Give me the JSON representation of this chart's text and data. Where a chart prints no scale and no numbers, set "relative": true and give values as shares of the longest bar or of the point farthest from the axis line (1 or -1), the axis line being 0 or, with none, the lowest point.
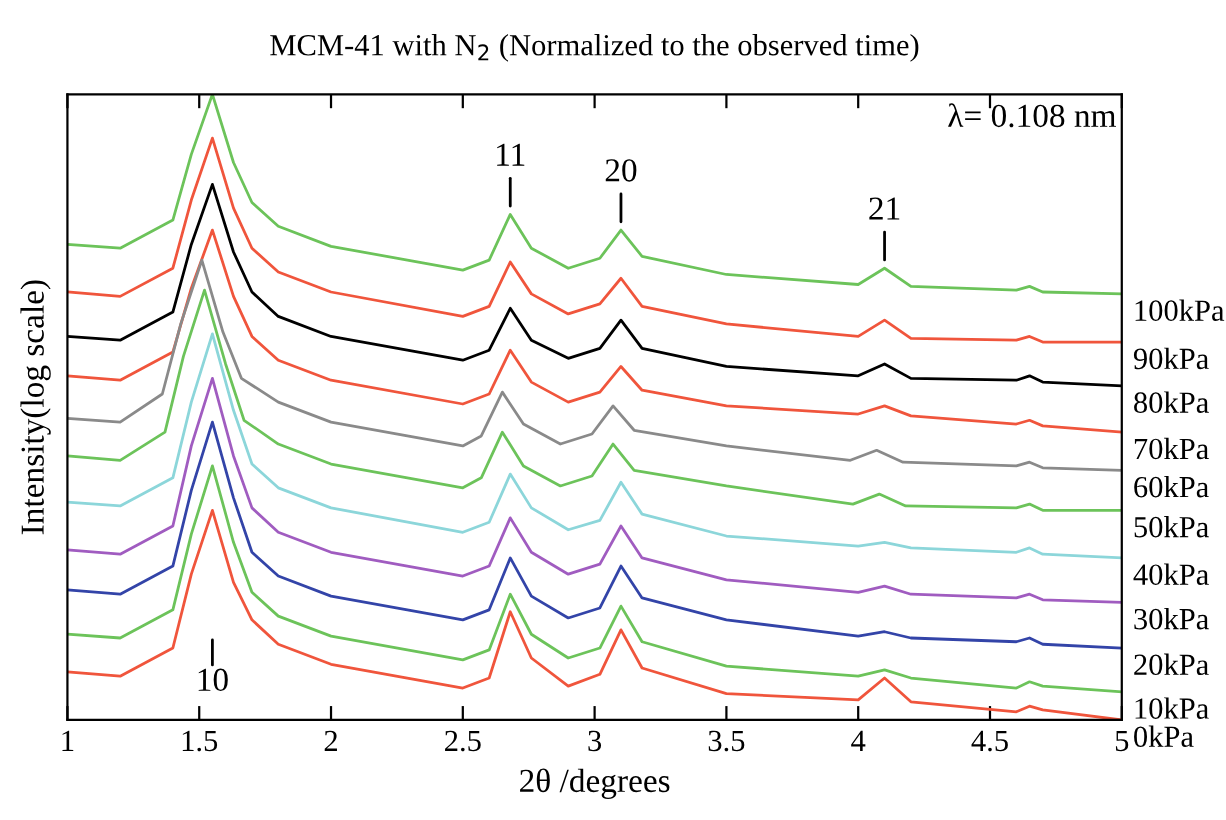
{
  "chart_data": {
    "type": "line",
    "relative": true,
    "title": "MCM-41 with N$_{2}$ (Normalized to the observed time)",
    "xlabel": "2θ /degrees",
    "ylabel": "Intensity(log scale)",
    "x": [
      1.0,
      1.2,
      1.4,
      1.47,
      1.55,
      1.63,
      1.7,
      1.8,
      2.0,
      2.5,
      2.6,
      2.68,
      2.76,
      2.9,
      3.02,
      3.1,
      3.18,
      3.5,
      4.0,
      4.1,
      4.2,
      4.6,
      4.65,
      4.7,
      5.0
    ],
    "xlim": [
      1,
      5
    ],
    "xticks": [
      1,
      1.5,
      2,
      2.5,
      3,
      3.5,
      4,
      4.5,
      5
    ],
    "grid": false,
    "legend": false,
    "marker": "none",
    "line_style": "solid",
    "series": [
      {
        "name": "100kPa",
        "color": "#6cc35a",
        "values": [
          0.76,
          0.754,
          0.799,
          0.904,
          1.0,
          0.891,
          0.827,
          0.789,
          0.757,
          0.719,
          0.735,
          0.808,
          0.754,
          0.722,
          0.738,
          0.783,
          0.741,
          0.712,
          0.696,
          0.722,
          0.693,
          0.687,
          0.693,
          0.684,
          0.681
        ]
      },
      {
        "name": "90kPa",
        "color": "#f0553c",
        "values": [
          0.684,
          0.677,
          0.722,
          0.831,
          0.93,
          0.818,
          0.754,
          0.716,
          0.684,
          0.645,
          0.661,
          0.732,
          0.681,
          0.649,
          0.665,
          0.706,
          0.661,
          0.633,
          0.613,
          0.639,
          0.61,
          0.607,
          0.613,
          0.604,
          0.604
        ]
      },
      {
        "name": "80kPa",
        "color": "#000000",
        "values": [
          0.613,
          0.607,
          0.652,
          0.76,
          0.856,
          0.748,
          0.684,
          0.645,
          0.613,
          0.575,
          0.591,
          0.658,
          0.607,
          0.578,
          0.594,
          0.639,
          0.594,
          0.565,
          0.55,
          0.569,
          0.546,
          0.543,
          0.55,
          0.54,
          0.534
        ]
      },
      {
        "name": "70kPa",
        "color": "#f0553c",
        "values": [
          0.55,
          0.543,
          0.588,
          0.69,
          0.783,
          0.677,
          0.613,
          0.575,
          0.543,
          0.505,
          0.521,
          0.591,
          0.54,
          0.508,
          0.524,
          0.565,
          0.527,
          0.502,
          0.489,
          0.502,
          0.486,
          0.473,
          0.479,
          0.47,
          0.46
        ]
      },
      {
        "name": "60kPa",
        "color": "#8a8a8a",
        "x": [
          1.0,
          1.2,
          1.36,
          1.43,
          1.51,
          1.59,
          1.66,
          1.8,
          2.0,
          2.5,
          2.57,
          2.65,
          2.73,
          2.87,
          2.99,
          3.07,
          3.15,
          3.5,
          3.97,
          4.07,
          4.17,
          4.6,
          4.65,
          4.7,
          5.0
        ],
        "values": [
          0.482,
          0.476,
          0.521,
          0.633,
          0.735,
          0.62,
          0.546,
          0.508,
          0.476,
          0.438,
          0.454,
          0.524,
          0.473,
          0.441,
          0.457,
          0.502,
          0.463,
          0.438,
          0.415,
          0.431,
          0.412,
          0.406,
          0.412,
          0.403,
          0.399
        ]
      },
      {
        "name": "50kPa",
        "color": "#6cc35a",
        "x": [
          1.0,
          1.2,
          1.37,
          1.44,
          1.52,
          1.6,
          1.67,
          1.8,
          2.0,
          2.5,
          2.57,
          2.65,
          2.73,
          2.87,
          2.99,
          3.07,
          3.15,
          3.5,
          3.98,
          4.08,
          4.18,
          4.6,
          4.65,
          4.7,
          5.0
        ],
        "values": [
          0.422,
          0.415,
          0.46,
          0.581,
          0.687,
          0.569,
          0.479,
          0.441,
          0.409,
          0.371,
          0.387,
          0.46,
          0.406,
          0.374,
          0.39,
          0.441,
          0.399,
          0.374,
          0.345,
          0.361,
          0.342,
          0.339,
          0.345,
          0.335,
          0.335
        ]
      },
      {
        "name": "40kPa",
        "color": "#8cd6da",
        "values": [
          0.348,
          0.342,
          0.387,
          0.508,
          0.617,
          0.495,
          0.409,
          0.371,
          0.339,
          0.3,
          0.316,
          0.393,
          0.339,
          0.304,
          0.319,
          0.38,
          0.329,
          0.294,
          0.278,
          0.284,
          0.275,
          0.268,
          0.275,
          0.265,
          0.259
        ]
      },
      {
        "name": "30kPa",
        "color": "#a05cc0",
        "values": [
          0.272,
          0.265,
          0.31,
          0.438,
          0.546,
          0.422,
          0.339,
          0.3,
          0.268,
          0.23,
          0.246,
          0.323,
          0.268,
          0.233,
          0.249,
          0.31,
          0.259,
          0.224,
          0.204,
          0.214,
          0.201,
          0.195,
          0.201,
          0.192,
          0.188
        ]
      },
      {
        "name": "20kPa",
        "color": "#3344a8",
        "values": [
          0.208,
          0.201,
          0.246,
          0.367,
          0.476,
          0.355,
          0.268,
          0.23,
          0.198,
          0.16,
          0.176,
          0.259,
          0.198,
          0.163,
          0.179,
          0.246,
          0.195,
          0.16,
          0.134,
          0.141,
          0.131,
          0.125,
          0.131,
          0.121,
          0.115
        ]
      },
      {
        "name": "10kPa",
        "color": "#6cc35a",
        "values": [
          0.137,
          0.131,
          0.176,
          0.297,
          0.406,
          0.284,
          0.204,
          0.166,
          0.134,
          0.096,
          0.112,
          0.201,
          0.137,
          0.099,
          0.115,
          0.182,
          0.125,
          0.086,
          0.07,
          0.08,
          0.067,
          0.051,
          0.061,
          0.054,
          0.045
        ]
      },
      {
        "name": "0kPa",
        "color": "#f0553c",
        "values": [
          0.077,
          0.07,
          0.115,
          0.233,
          0.335,
          0.22,
          0.16,
          0.121,
          0.089,
          0.051,
          0.067,
          0.173,
          0.099,
          0.054,
          0.073,
          0.144,
          0.083,
          0.042,
          0.032,
          0.067,
          0.029,
          0.013,
          0.022,
          0.016,
          0
        ]
      }
    ],
    "annotations": [
      "λ= 0.108 nm",
      "10",
      {
        "text": "11",
        "x": 2.68,
        "y": 0.808
      },
      {
        "text": "20",
        "x": 3.1,
        "y": 0.783
      },
      {
        "text": "21",
        "x": 4.1,
        "y": 0.722
      }
    ]
  }
}
